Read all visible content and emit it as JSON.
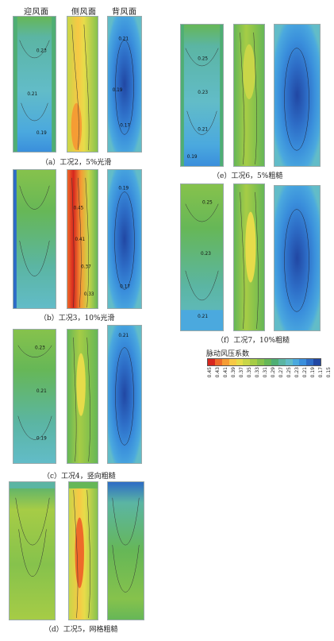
{
  "column_headers": [
    "迎风面",
    "侧风面",
    "背风面"
  ],
  "captions": {
    "a": "（a）工况2，5%光滑",
    "b": "（b）工况3，10%光滑",
    "c": "（c）工况4，竖向粗糙",
    "d": "（d）工况5，网格粗糙",
    "e": "（e）工况6，5%粗糙",
    "f": "（f）工况7，10%粗糙"
  },
  "legend": {
    "title": "脉动风压系数",
    "ticks": [
      "0.45",
      "0.43",
      "0.41",
      "0.39",
      "0.37",
      "0.35",
      "0.33",
      "0.31",
      "0.29",
      "0.27",
      "0.25",
      "0.23",
      "0.21",
      "0.19",
      "0.17",
      "0.15"
    ],
    "colors": [
      "#d7261e",
      "#ee6a2a",
      "#f59c34",
      "#f7c845",
      "#e6dc4a",
      "#c9d648",
      "#a6cc46",
      "#86c24c",
      "#66b757",
      "#4fae74",
      "#5bb5a3",
      "#62bcc8",
      "#4ba9de",
      "#3a8fdc",
      "#2d6cc6",
      "#2147a3"
    ]
  },
  "contour_labels": {
    "a_windward": [
      "0.23",
      "0.21",
      "0.19"
    ],
    "a_leeward": [
      "0.21",
      "0.19",
      "0.17"
    ],
    "b_side": [
      "0.45",
      "0.41",
      "0.37",
      "0.33"
    ],
    "b_leeward": [
      "0.19",
      "0.17"
    ],
    "c_windward": [
      "0.23",
      "0.21",
      "0.19"
    ],
    "c_leeward": [
      "0.21"
    ],
    "e_windward": [
      "0.25",
      "0.23",
      "0.21",
      "0.19"
    ],
    "f_windward": [
      "0.25",
      "0.23",
      "0.21"
    ]
  }
}
